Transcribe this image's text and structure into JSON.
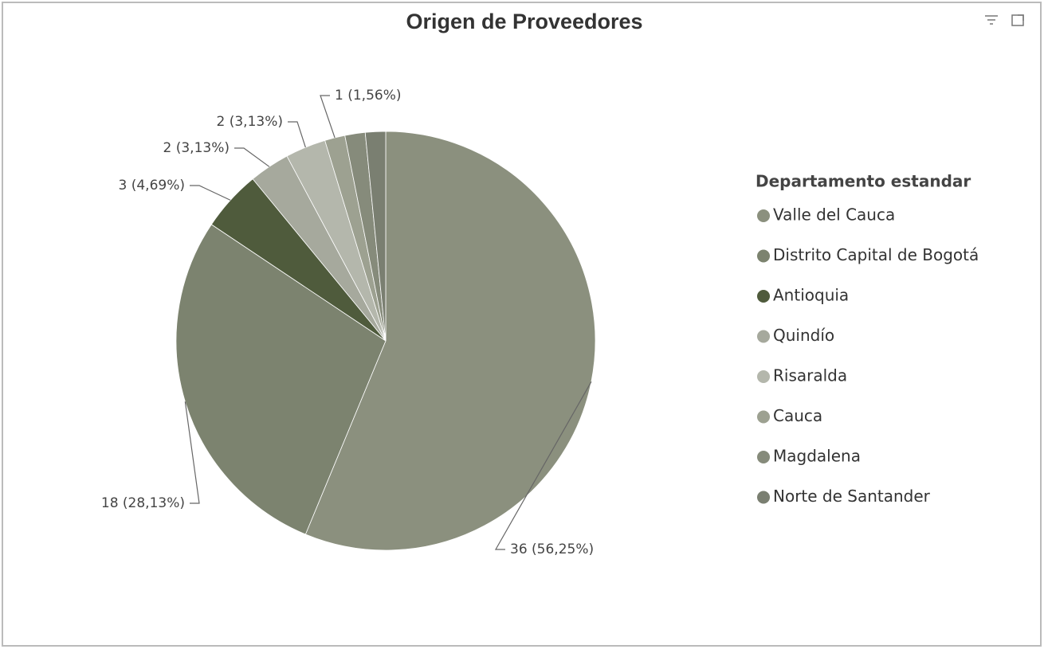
{
  "chart_data": {
    "type": "pie",
    "title": "Origen de Proveedores",
    "legend_title": "Departamento estandar",
    "categories": [
      "Valle del Cauca",
      "Distrito Capital de Bogotá",
      "Antioquia",
      "Quindío",
      "Risaralda",
      "Cauca",
      "Magdalena",
      "Norte de Santander"
    ],
    "values": [
      36,
      18,
      3,
      2,
      2,
      1,
      1,
      1
    ],
    "value_labels": [
      "36 (56,25%)",
      "18 (28,13%)",
      "3 (4,69%)",
      "2 (3,13%)",
      "2 (3,13%)",
      "1 (1,56%)",
      null,
      null
    ],
    "colors": [
      "#8b907e",
      "#7c836f",
      "#4f5b3c",
      "#a6a99d",
      "#b4b7ac",
      "#9da191",
      "#868b7b",
      "#7a7f71"
    ],
    "legend": "right"
  }
}
